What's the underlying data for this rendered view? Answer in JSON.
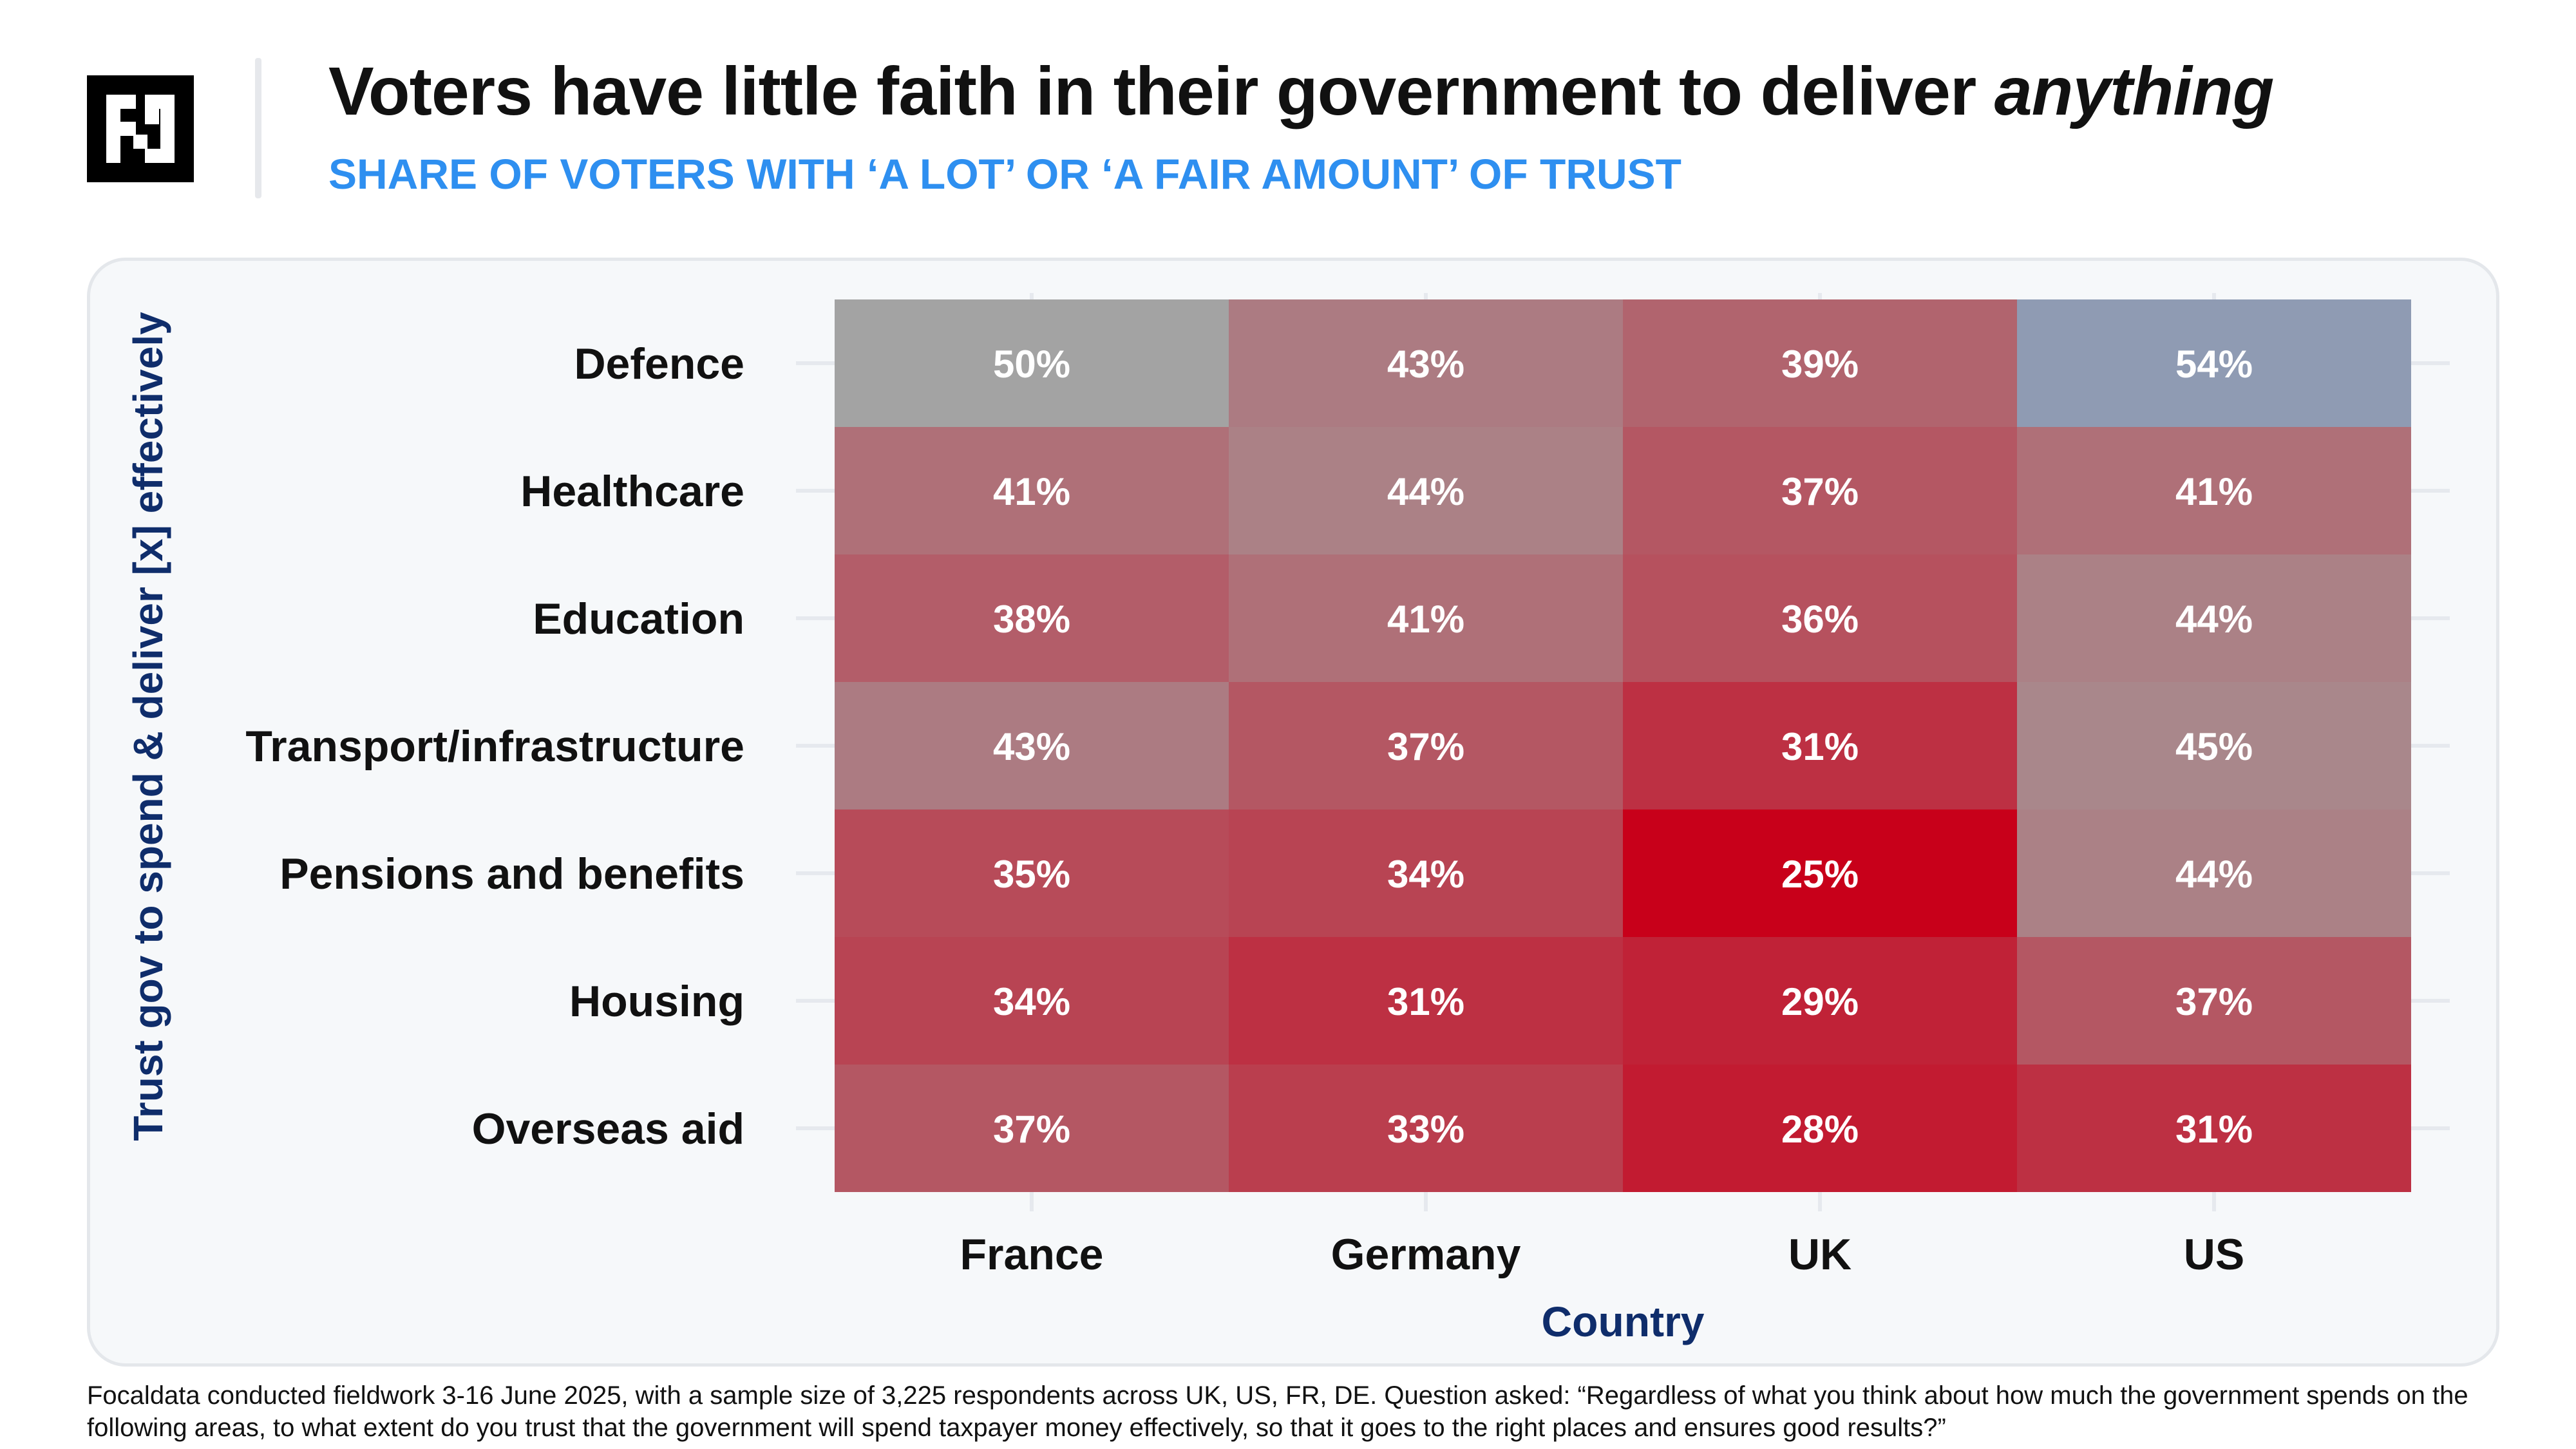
{
  "header": {
    "title_main": "Voters have little faith in their government to deliver ",
    "title_emphasis": "anything",
    "subtitle": "SHARE OF VOTERS WITH ‘A LOT’ OR ‘A FAIR AMOUNT’ OF TRUST"
  },
  "logo": {
    "icon": "focaldata-logo-icon"
  },
  "chart_data": {
    "type": "heatmap",
    "title": "Voters have little faith in their government to deliver anything",
    "subtitle": "SHARE OF VOTERS WITH ‘A LOT’ OR ‘A FAIR AMOUNT’ OF TRUST",
    "xlabel": "Country",
    "ylabel": "Trust gov to spend & deliver [x] effectively",
    "x": [
      "France",
      "Germany",
      "UK",
      "US"
    ],
    "y": [
      "Defence",
      "Healthcare",
      "Education",
      "Transport/infrastructure",
      "Pensions and benefits",
      "Housing",
      "Overseas aid"
    ],
    "values": [
      [
        50,
        43,
        39,
        54
      ],
      [
        41,
        44,
        37,
        41
      ],
      [
        38,
        41,
        36,
        44
      ],
      [
        43,
        37,
        31,
        45
      ],
      [
        35,
        34,
        25,
        44
      ],
      [
        34,
        31,
        29,
        37
      ],
      [
        37,
        33,
        28,
        31
      ]
    ],
    "labels": [
      [
        "50%",
        "43%",
        "39%",
        "54%"
      ],
      [
        "41%",
        "44%",
        "37%",
        "41%"
      ],
      [
        "38%",
        "41%",
        "36%",
        "44%"
      ],
      [
        "43%",
        "37%",
        "31%",
        "45%"
      ],
      [
        "35%",
        "34%",
        "25%",
        "44%"
      ],
      [
        "34%",
        "31%",
        "29%",
        "37%"
      ],
      [
        "37%",
        "33%",
        "28%",
        "31%"
      ]
    ],
    "color_scale": {
      "low_color": "#c8001a",
      "mid_color": "#a3a3a3",
      "high_color": "#8f9bb3",
      "low": 25,
      "mid": 50,
      "high": 54
    },
    "grid": true,
    "legend": "none"
  },
  "colors": {
    "title": "#111111",
    "subtitle": "#2e8ff0",
    "axis_title": "#0f2d6b",
    "cell_text": "#ffffff",
    "panel_bg": "#f6f8fa",
    "panel_border": "#e4e7eb"
  },
  "footnote": "Focaldata conducted fieldwork 3-16 June 2025, with a sample size of 3,225 respondents across UK, US, FR, DE. Question asked: “Regardless of what you think about how much the government spends on the following areas, to what extent do you trust that the government will spend taxpayer money effectively, so that it goes to the right places and ensures good results?”"
}
